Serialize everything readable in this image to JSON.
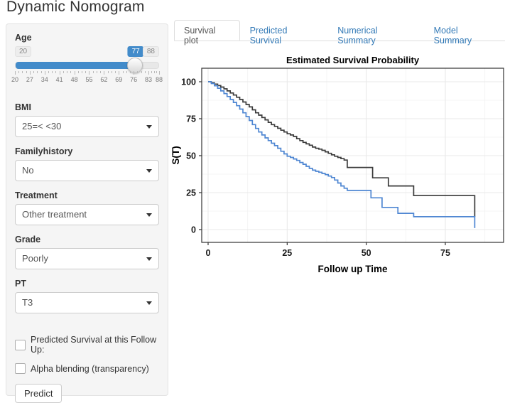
{
  "title": "Dynamic Nomogram",
  "colors": {
    "accent_blue": "#428bca",
    "tab_link_blue": "#337ab7",
    "curve_black": "#3b3b3b",
    "curve_blue": "#4e86d2",
    "sidebar_bg": "#f5f5f5"
  },
  "sidebar": {
    "age": {
      "label": "Age",
      "min": 20,
      "max": 88,
      "value": 77,
      "min_badge": "20",
      "max_badge": "88",
      "value_badge": "77",
      "tick_values": [
        20,
        27,
        34,
        41,
        48,
        55,
        62,
        69,
        76,
        83,
        88
      ]
    },
    "selects": [
      {
        "label": "BMI",
        "value": "25=< <30"
      },
      {
        "label": "Familyhistory",
        "value": "No"
      },
      {
        "label": "Treatment",
        "value": "Other treatment"
      },
      {
        "label": "Grade",
        "value": "Poorly"
      },
      {
        "label": "PT",
        "value": "T3"
      }
    ],
    "checkboxes": [
      {
        "label": "Predicted Survival at this Follow Up:",
        "checked": false
      },
      {
        "label": "Alpha blending (transparency)",
        "checked": false
      }
    ],
    "predict_button": "Predict"
  },
  "tabs": [
    {
      "label": "Survival plot",
      "active": true
    },
    {
      "label": "Predicted Survival",
      "active": false
    },
    {
      "label": "Numerical Summary",
      "active": false
    },
    {
      "label": "Model Summary",
      "active": false
    }
  ],
  "chart_data": {
    "type": "line",
    "line_style": "step-after",
    "title": "Estimated Survival Probability",
    "xlabel": "Follow up Time",
    "ylabel": "S(T)",
    "xticks": [
      0,
      25,
      50,
      75
    ],
    "yticks": [
      0,
      25,
      50,
      75,
      100
    ],
    "xlim": [
      -2,
      93
    ],
    "ylim": [
      -8,
      109
    ],
    "grid": true,
    "legend_position": "none",
    "series": [
      {
        "name": "survival-curve-1",
        "color": "#3b3b3b",
        "points": [
          [
            0,
            100
          ],
          [
            1,
            99.3
          ],
          [
            2,
            98.4
          ],
          [
            3,
            97.4
          ],
          [
            4,
            96.4
          ],
          [
            5,
            95.2
          ],
          [
            6,
            93.8
          ],
          [
            7,
            92.4
          ],
          [
            8,
            91
          ],
          [
            9,
            89.5
          ],
          [
            10,
            88
          ],
          [
            11,
            86.3
          ],
          [
            12,
            84.6
          ],
          [
            13,
            83
          ],
          [
            14,
            81
          ],
          [
            15,
            79
          ],
          [
            16,
            77.4
          ],
          [
            17,
            75.8
          ],
          [
            18,
            74.2
          ],
          [
            19,
            72.5
          ],
          [
            20,
            71
          ],
          [
            21,
            69.8
          ],
          [
            22,
            68.5
          ],
          [
            23,
            67.2
          ],
          [
            24,
            66
          ],
          [
            25,
            64.8
          ],
          [
            26,
            64
          ],
          [
            27,
            63
          ],
          [
            28,
            61.5
          ],
          [
            29,
            60.2
          ],
          [
            30,
            59
          ],
          [
            31,
            58
          ],
          [
            32,
            57
          ],
          [
            33,
            55.8
          ],
          [
            34,
            55
          ],
          [
            35,
            54.4
          ],
          [
            36,
            53.6
          ],
          [
            37,
            52.6
          ],
          [
            38,
            51.6
          ],
          [
            39,
            50.6
          ],
          [
            40,
            49.6
          ],
          [
            41,
            48.8
          ],
          [
            42,
            48
          ],
          [
            43,
            47
          ],
          [
            44,
            42
          ],
          [
            52,
            35
          ],
          [
            57,
            29.5
          ],
          [
            65,
            23
          ],
          [
            84.3,
            8.7
          ]
        ]
      },
      {
        "name": "survival-curve-2",
        "color": "#4e86d2",
        "points": [
          [
            0,
            100
          ],
          [
            1,
            98.8
          ],
          [
            2,
            97.3
          ],
          [
            3,
            95.6
          ],
          [
            4,
            93.8
          ],
          [
            5,
            92
          ],
          [
            6,
            90
          ],
          [
            7,
            88
          ],
          [
            8,
            86
          ],
          [
            9,
            83.8
          ],
          [
            10,
            81.5
          ],
          [
            11,
            79
          ],
          [
            12,
            76.4
          ],
          [
            13,
            73.8
          ],
          [
            14,
            71
          ],
          [
            15,
            68.4
          ],
          [
            16,
            66
          ],
          [
            17,
            64
          ],
          [
            18,
            62
          ],
          [
            19,
            60.2
          ],
          [
            20,
            58.4
          ],
          [
            21,
            56.8
          ],
          [
            22,
            55
          ],
          [
            23,
            53
          ],
          [
            24,
            51.2
          ],
          [
            25,
            49.6
          ],
          [
            26,
            48.8
          ],
          [
            27,
            47.8
          ],
          [
            28,
            46.8
          ],
          [
            29,
            45.4
          ],
          [
            30,
            44.2
          ],
          [
            31,
            42.8
          ],
          [
            32,
            41.4
          ],
          [
            33,
            40.2
          ],
          [
            34,
            39.4
          ],
          [
            35,
            38.8
          ],
          [
            36,
            38
          ],
          [
            37,
            37.2
          ],
          [
            38,
            36.2
          ],
          [
            39,
            35.2
          ],
          [
            40,
            33.5
          ],
          [
            41,
            31.5
          ],
          [
            42,
            29.5
          ],
          [
            43,
            28
          ],
          [
            44,
            26.5
          ],
          [
            51.5,
            21.5
          ],
          [
            55,
            15
          ],
          [
            60,
            11
          ],
          [
            65,
            8.7
          ],
          [
            84.3,
            1
          ]
        ]
      }
    ]
  }
}
